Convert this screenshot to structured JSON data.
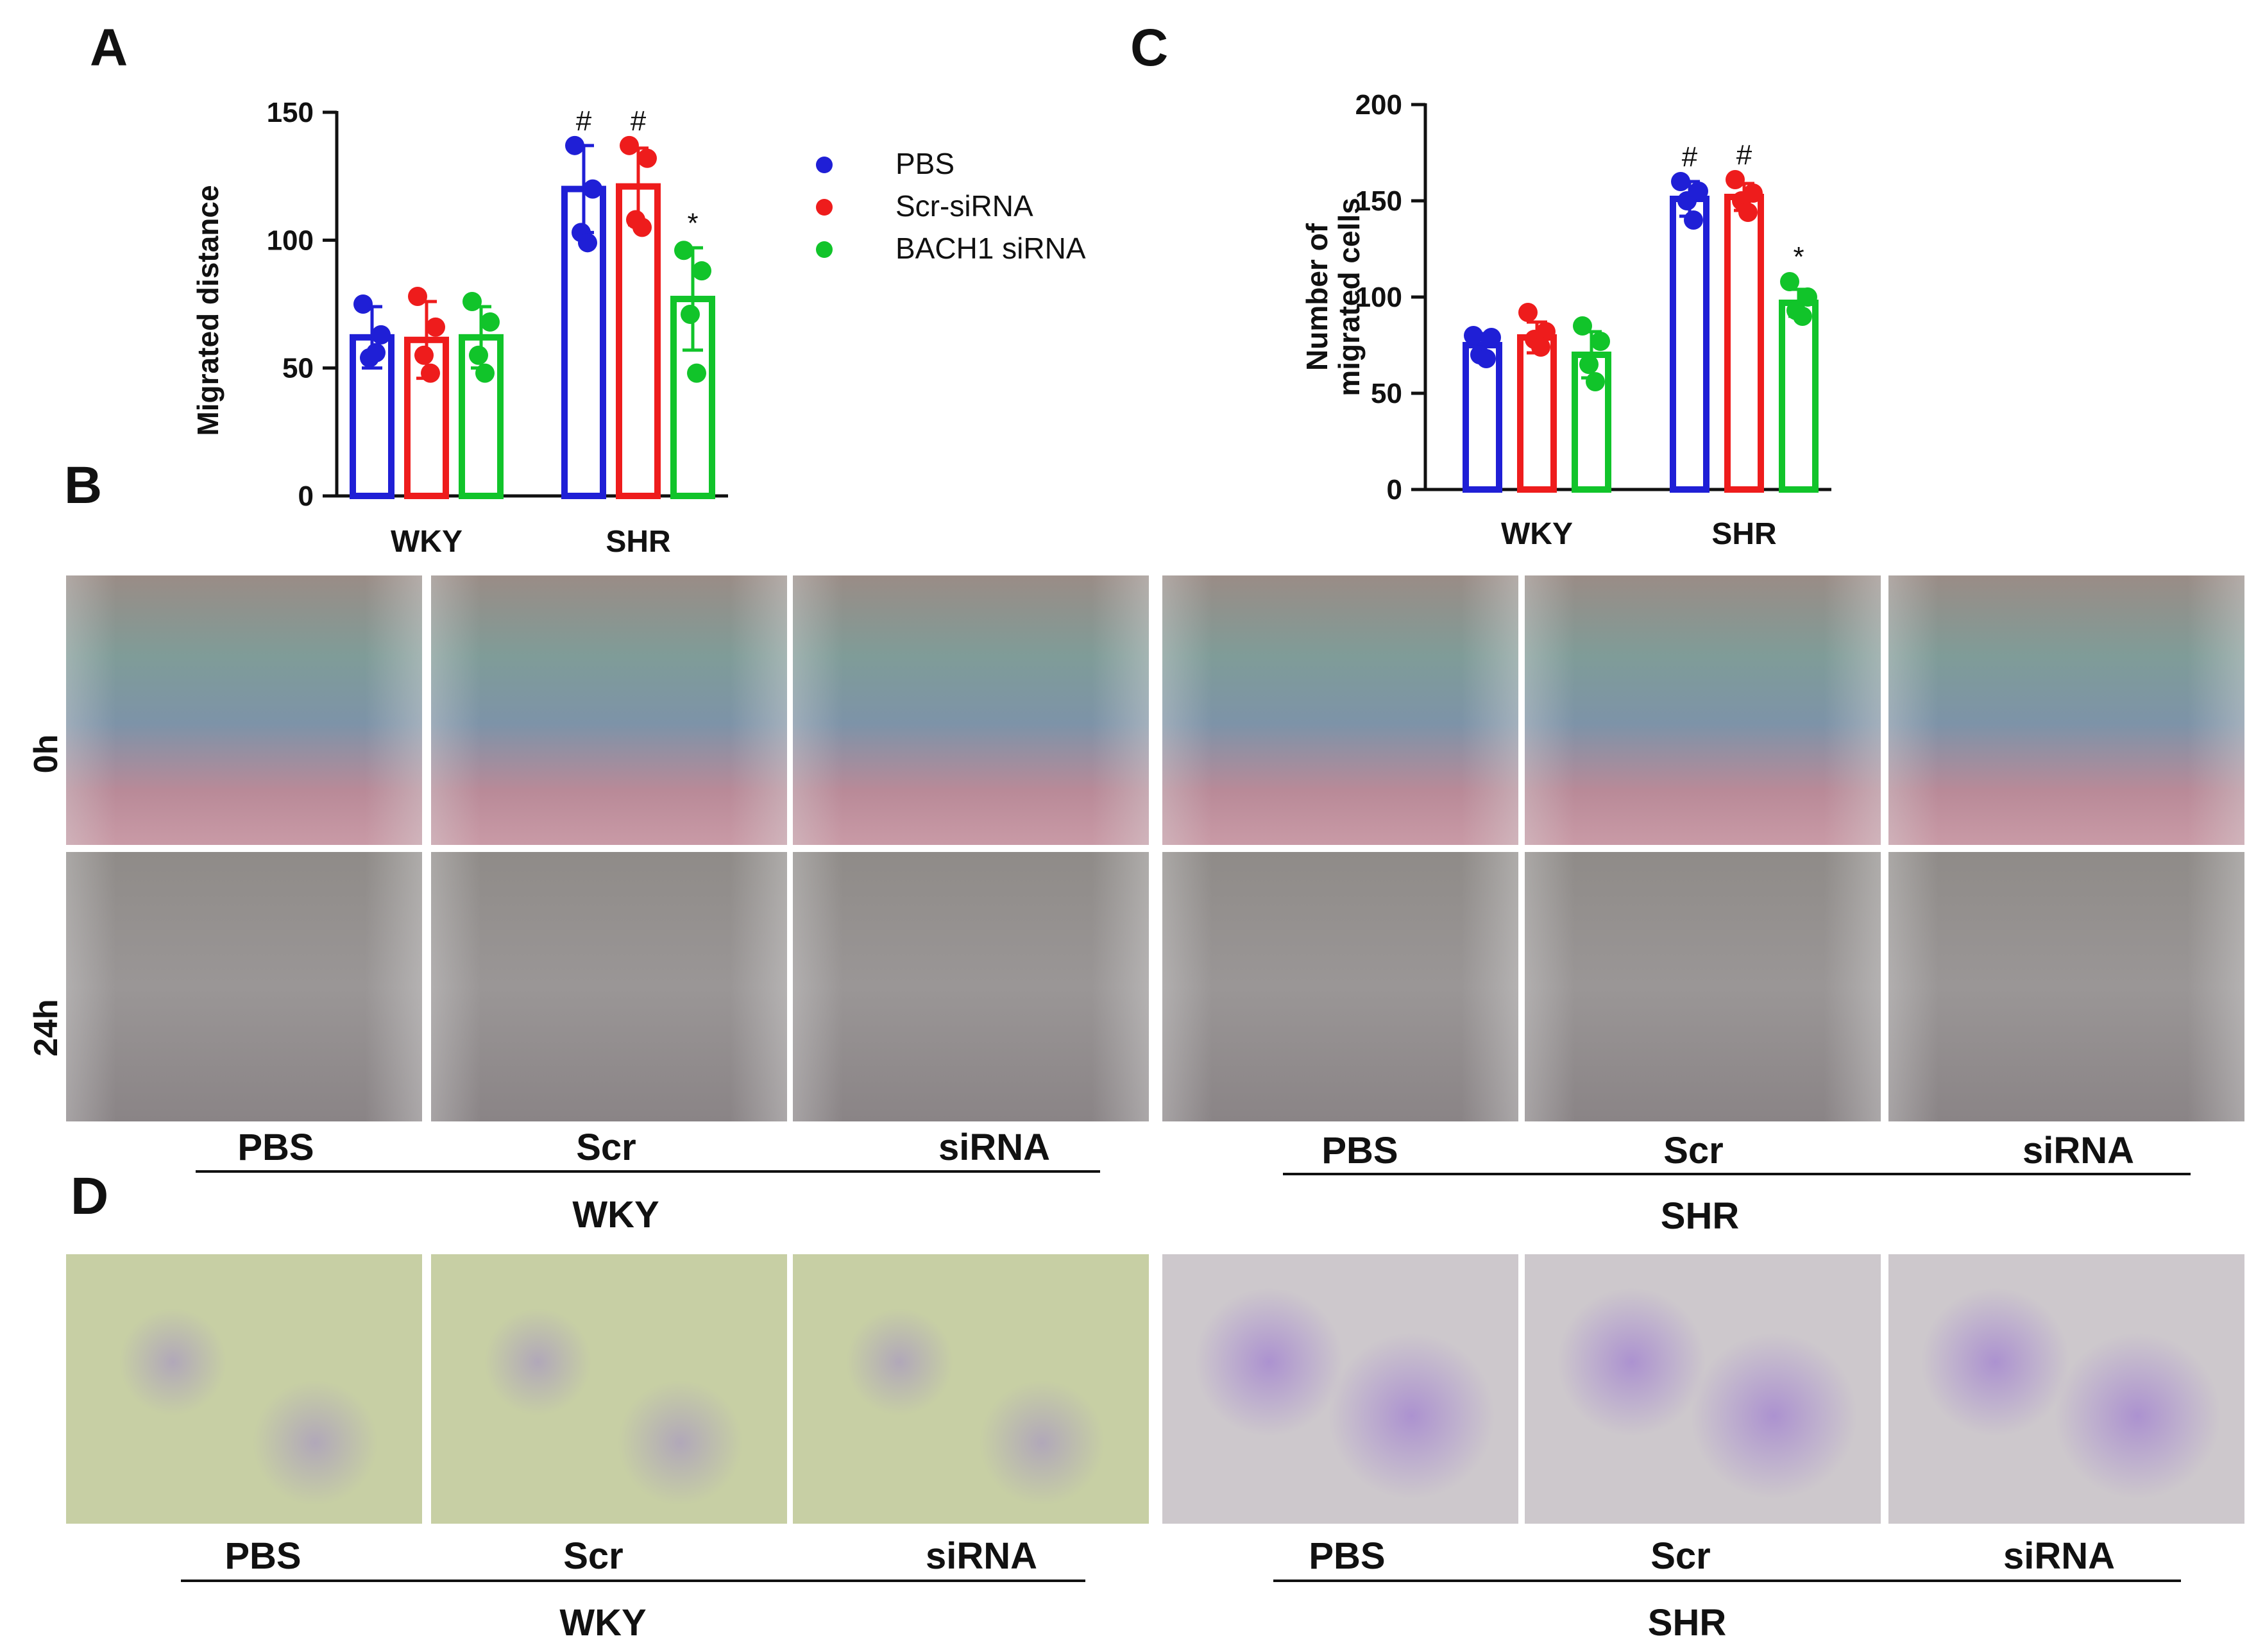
{
  "panels": {
    "a": "A",
    "b": "B",
    "c": "C",
    "d": "D"
  },
  "colors": {
    "pbs": "#1f1fd6",
    "scr": "#ee1c1c",
    "sirna": "#11c42a",
    "axis": "#111111"
  },
  "legend": {
    "items": [
      {
        "label": "PBS",
        "color": "#1f1fd6"
      },
      {
        "label": "Scr-siRNA",
        "color": "#ee1c1c"
      },
      {
        "label": "BACH1 siRNA",
        "color": "#11c42a"
      }
    ]
  },
  "chart_data": [
    {
      "id": "A",
      "type": "bar",
      "categories": [
        "WKY",
        "SHR"
      ],
      "ylabel": "Migrated distance",
      "ylim": [
        0,
        150
      ],
      "yticks": [
        0,
        50,
        100,
        150
      ],
      "series": [
        {
          "name": "PBS",
          "values": [
            62,
            120
          ],
          "errors": [
            12,
            17
          ],
          "points": [
            [
              75,
              63,
              54,
              56
            ],
            [
              137,
              120,
              103,
              99
            ]
          ],
          "markers": [
            "",
            "#"
          ]
        },
        {
          "name": "Scr-siRNA",
          "values": [
            61,
            121
          ],
          "errors": [
            15,
            15
          ],
          "points": [
            [
              78,
              66,
              55,
              48
            ],
            [
              137,
              132,
              108,
              105
            ]
          ],
          "markers": [
            "",
            "#"
          ]
        },
        {
          "name": "BACH1 siRNA",
          "values": [
            62,
            77
          ],
          "errors": [
            12,
            20
          ],
          "points": [
            [
              76,
              68,
              55,
              48
            ],
            [
              96,
              88,
              71,
              48
            ]
          ],
          "markers": [
            "",
            "*"
          ]
        }
      ]
    },
    {
      "id": "C",
      "type": "bar",
      "categories": [
        "WKY",
        "SHR"
      ],
      "ylabel": "Number of migrated cells",
      "ylabel_lines": [
        "Number of",
        "migrated cells"
      ],
      "ylim": [
        0,
        200
      ],
      "yticks": [
        0,
        50,
        100,
        150,
        200
      ],
      "series": [
        {
          "name": "PBS",
          "values": [
            75,
            151
          ],
          "errors": [
            6,
            9
          ],
          "points": [
            [
              80,
              79,
              70,
              68
            ],
            [
              160,
              155,
              150,
              140
            ]
          ],
          "markers": [
            "",
            "#"
          ]
        },
        {
          "name": "Scr-siRNA",
          "values": [
            79,
            152
          ],
          "errors": [
            8,
            7
          ],
          "points": [
            [
              92,
              82,
              78,
              74
            ],
            [
              161,
              154,
              150,
              144
            ]
          ],
          "markers": [
            "",
            "#"
          ]
        },
        {
          "name": "BACH1 siRNA",
          "values": [
            70,
            97
          ],
          "errors": [
            12,
            7
          ],
          "points": [
            [
              85,
              77,
              65,
              56
            ],
            [
              108,
              100,
              93,
              90
            ]
          ],
          "markers": [
            "",
            "*"
          ]
        }
      ]
    }
  ],
  "panel_b": {
    "row_labels": [
      "0h",
      "24h"
    ],
    "condition_labels": [
      "PBS",
      "Scr",
      "siRNA"
    ],
    "group_labels": [
      "WKY",
      "SHR"
    ]
  },
  "panel_d": {
    "condition_labels": [
      "PBS",
      "Scr",
      "siRNA"
    ],
    "group_labels": [
      "WKY",
      "SHR"
    ]
  }
}
